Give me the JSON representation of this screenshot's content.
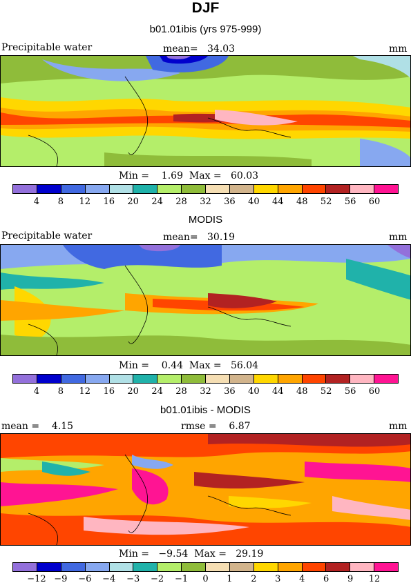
{
  "header": {
    "title": "DJF"
  },
  "panels": [
    {
      "subtitle": "b01.01ibis (yrs 975-999)",
      "left_label": "Precipitable water",
      "center_label": "mean=   34.03",
      "right_label": "mm",
      "minmax": "Min =    1.69  Max =   60.03",
      "colorbar": {
        "colors": [
          "#9370db",
          "#0000cd",
          "#4169e1",
          "#87a8f0",
          "#b0e0e6",
          "#20b2aa",
          "#b4ee6a",
          "#8fbc3a",
          "#f5deb3",
          "#d2b48c",
          "#ffd700",
          "#ffa500",
          "#ff4500",
          "#b22222",
          "#ffb6c1",
          "#ff1493"
        ],
        "ticks": [
          "4",
          "8",
          "12",
          "16",
          "20",
          "24",
          "28",
          "32",
          "36",
          "40",
          "44",
          "48",
          "52",
          "56",
          "60"
        ]
      }
    },
    {
      "subtitle": "MODIS",
      "left_label": "Precipitable water",
      "center_label": "mean=   30.19",
      "right_label": "mm",
      "minmax": "Min =    0.44  Max =   56.04",
      "colorbar": {
        "colors": [
          "#9370db",
          "#0000cd",
          "#4169e1",
          "#87a8f0",
          "#b0e0e6",
          "#20b2aa",
          "#b4ee6a",
          "#8fbc3a",
          "#f5deb3",
          "#d2b48c",
          "#ffd700",
          "#ffa500",
          "#ff4500",
          "#b22222",
          "#ffb6c1",
          "#ff1493"
        ],
        "ticks": [
          "4",
          "8",
          "12",
          "16",
          "20",
          "24",
          "28",
          "32",
          "36",
          "40",
          "44",
          "48",
          "52",
          "56",
          "60"
        ]
      }
    },
    {
      "subtitle": "b01.01ibis - MODIS",
      "left_label": "mean =    4.15",
      "center_label": "rmse =    6.87",
      "right_label": "mm",
      "minmax": "Min =   −9.54  Max =   29.19",
      "colorbar": {
        "colors": [
          "#9370db",
          "#0000cd",
          "#4169e1",
          "#87a8f0",
          "#b0e0e6",
          "#20b2aa",
          "#b4ee6a",
          "#8fbc3a",
          "#f5deb3",
          "#d2b48c",
          "#ffd700",
          "#ffa500",
          "#ff4500",
          "#b22222",
          "#ffb6c1",
          "#ff1493"
        ],
        "ticks": [
          "−12",
          "−9",
          "−6",
          "−4",
          "−3",
          "−2",
          "−1",
          "0",
          "1",
          "2",
          "3",
          "4",
          "6",
          "9",
          "12"
        ]
      }
    }
  ]
}
